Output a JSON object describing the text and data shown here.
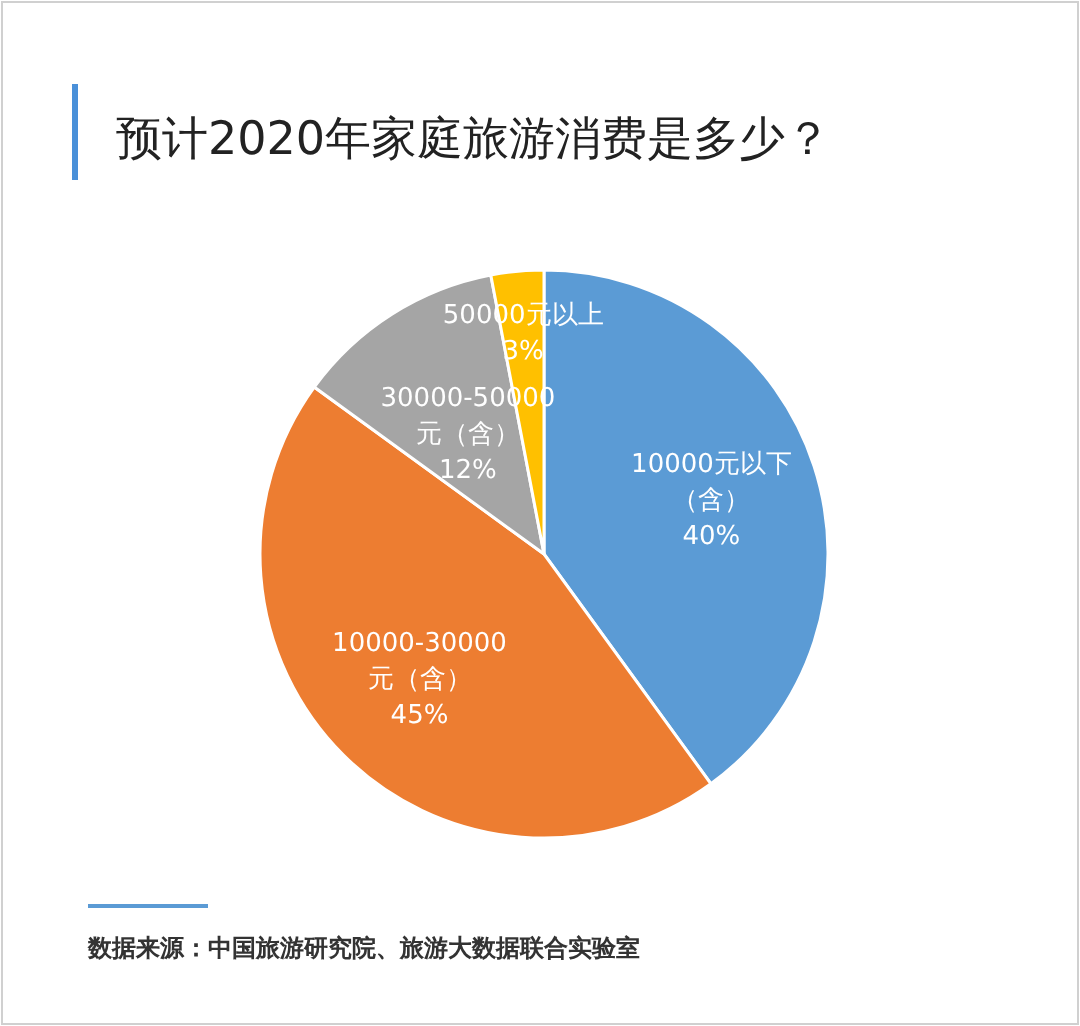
{
  "chart_data": {
    "type": "pie",
    "title": "预计2020年家庭旅游消费是多少？",
    "categories": [
      "10000元以下（含）",
      "10000-30000元（含）",
      "30000-50000元（含）",
      "50000元以上"
    ],
    "values": [
      40,
      45,
      12,
      3
    ],
    "colors": [
      "#5b9bd5",
      "#ed7d31",
      "#a5a5a5",
      "#ffc000"
    ],
    "value_labels": [
      "40%",
      "45%",
      "12%",
      "3%"
    ],
    "legend": false,
    "annotations": [
      "数据来源：中国旅游研究院、旅游大数据联合实验室"
    ]
  }
}
